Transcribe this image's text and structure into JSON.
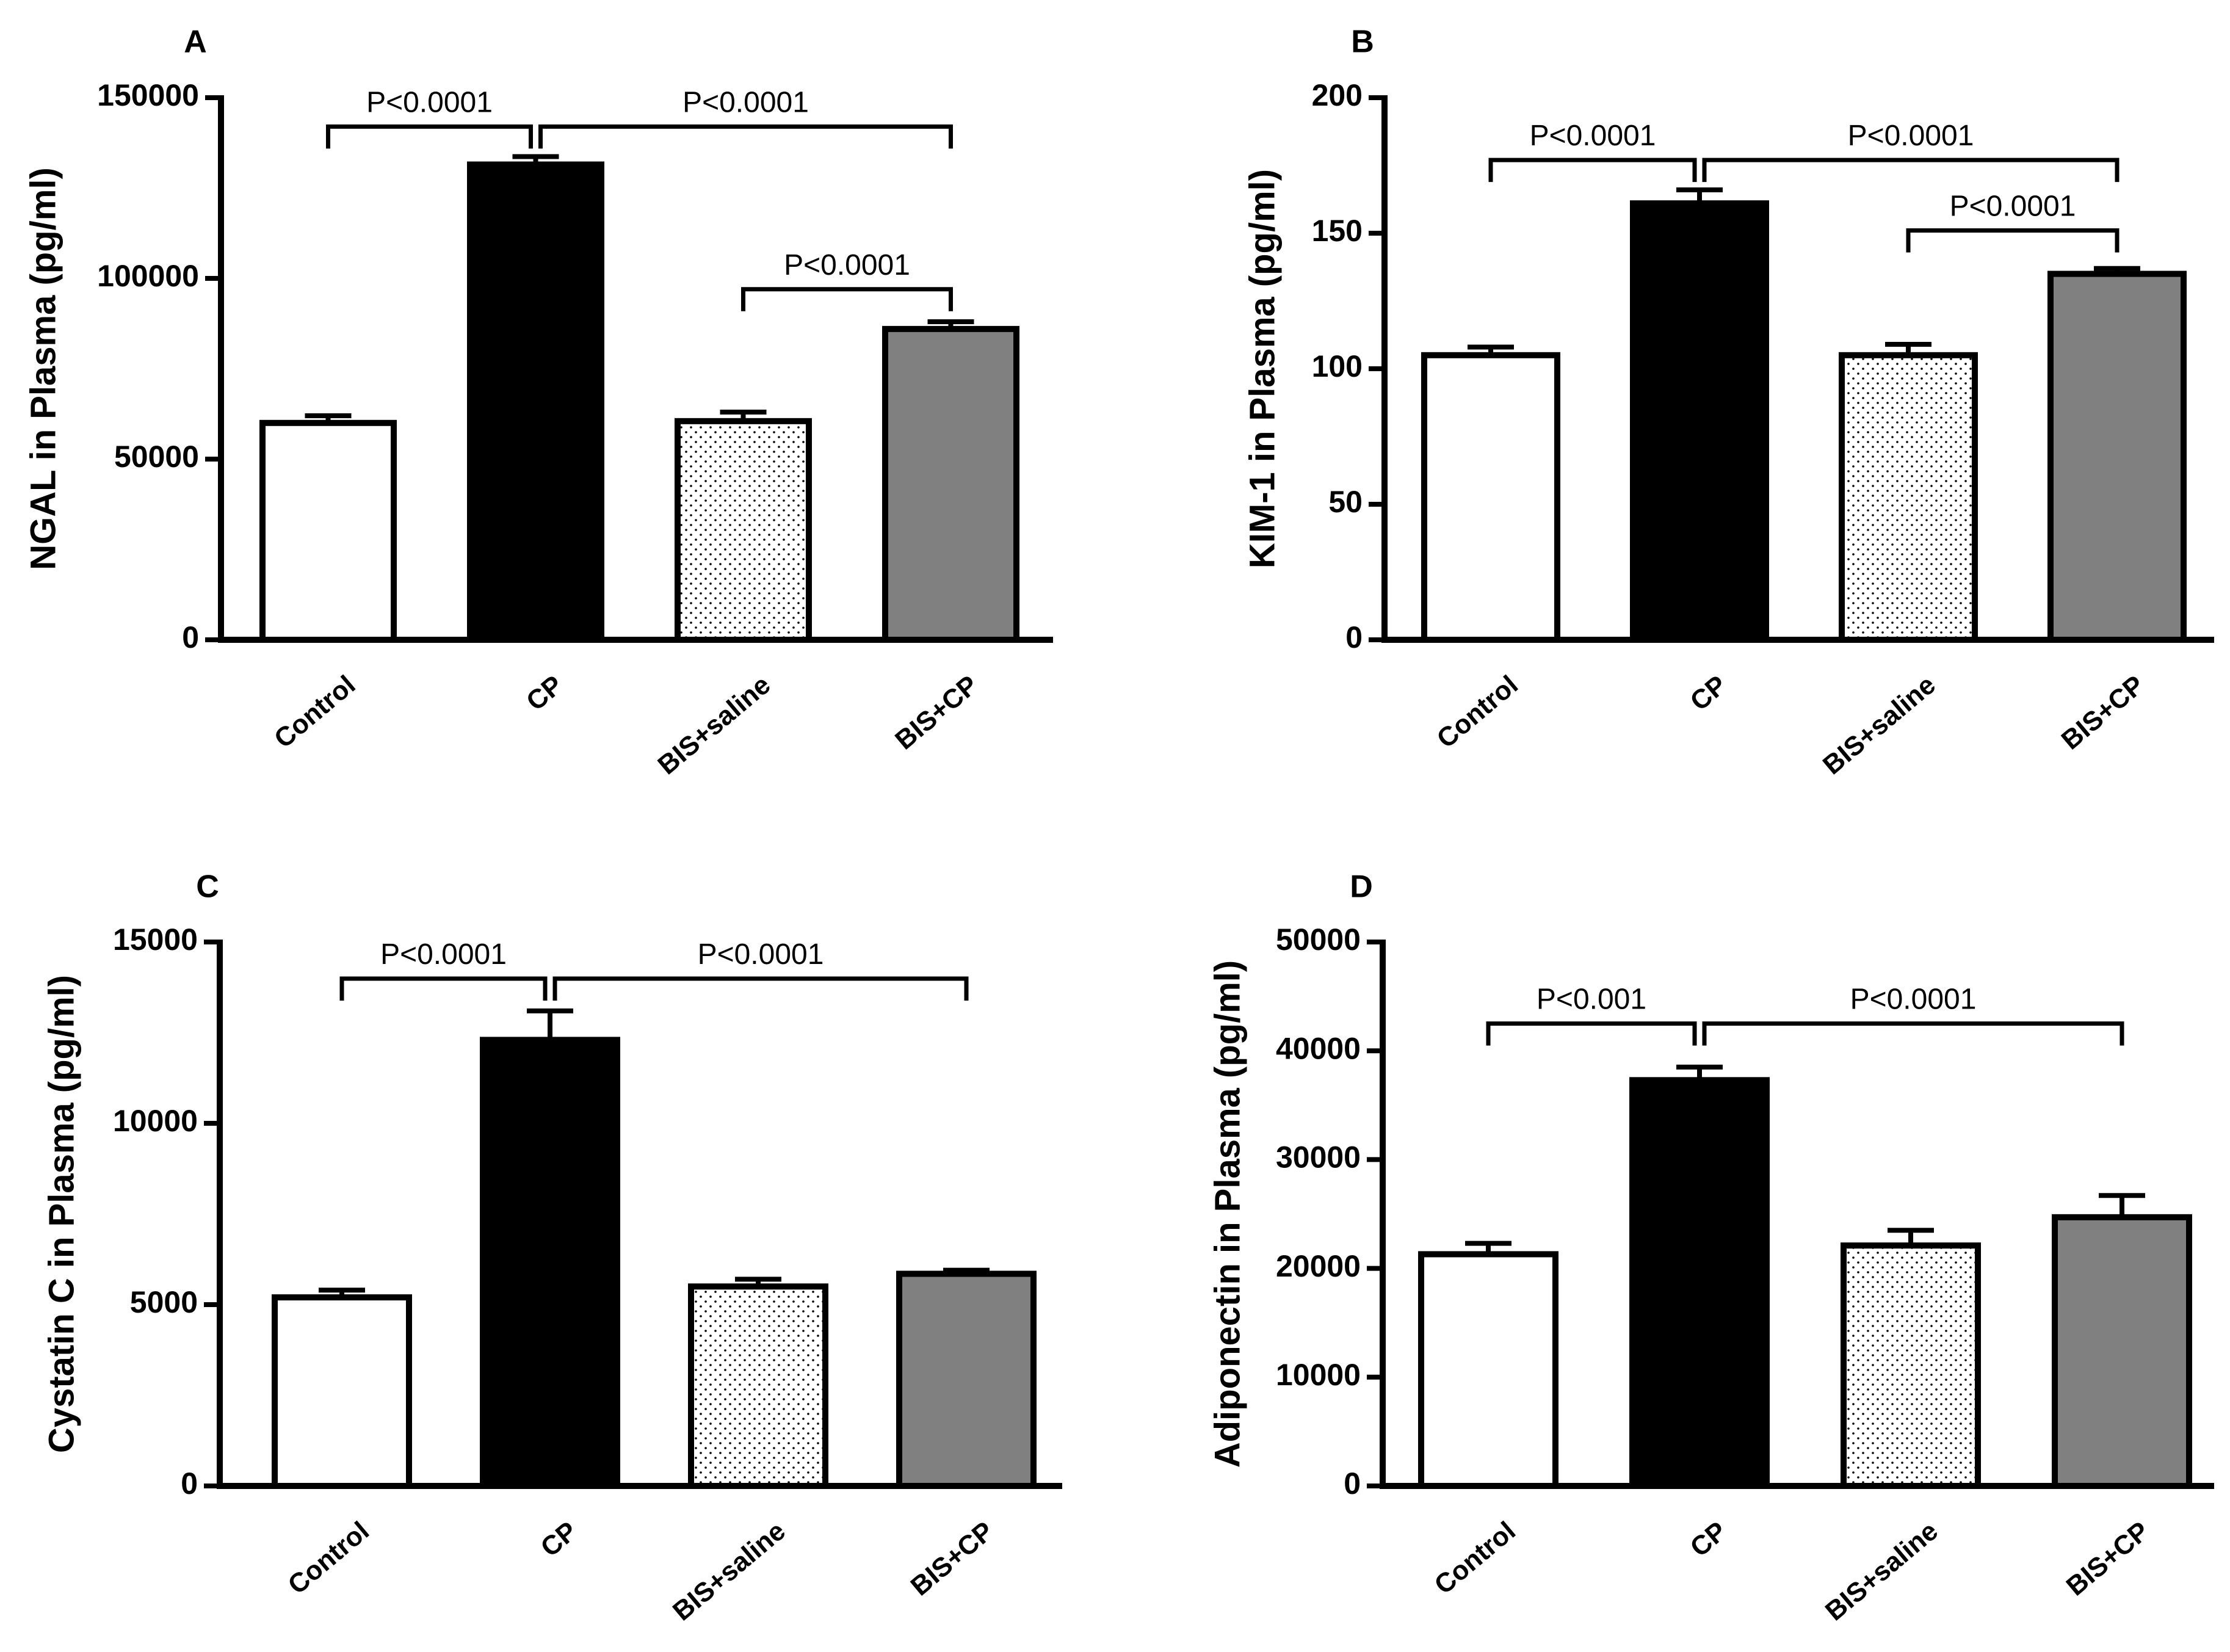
{
  "chart_data": [
    {
      "type": "bar",
      "panel": "A",
      "ylabel": "NGAL in Plasma (pg/ml)",
      "categories": [
        "Control",
        "CP",
        "BIS+saline",
        "BIS+CP"
      ],
      "values": [
        60000,
        131500,
        60500,
        86000
      ],
      "errors": [
        2000,
        2200,
        2500,
        2000
      ],
      "fills": [
        "white",
        "black",
        "dots",
        "gray"
      ],
      "ylim": [
        0,
        150000
      ],
      "yticks": [
        0,
        50000,
        100000,
        150000
      ],
      "ytick_labels": [
        "0",
        "50000",
        "100000",
        "150000"
      ],
      "comparisons": [
        {
          "from": 0,
          "to": 1,
          "label": "P<0.0001",
          "y": 142000
        },
        {
          "from": 1,
          "to": 3,
          "label": "P<0.0001",
          "y": 142000
        },
        {
          "from": 2,
          "to": 3,
          "label": "P<0.0001",
          "y": 97000
        }
      ]
    },
    {
      "type": "bar",
      "panel": "B",
      "ylabel": "KIM-1 in Plasma (pg/ml)",
      "categories": [
        "Control",
        "CP",
        "BIS+saline",
        "BIS+CP"
      ],
      "values": [
        105,
        161,
        105,
        135
      ],
      "errors": [
        3,
        5,
        4,
        2
      ],
      "fills": [
        "white",
        "black",
        "dots",
        "gray"
      ],
      "ylim": [
        0,
        200
      ],
      "yticks": [
        0,
        50,
        100,
        150,
        200
      ],
      "ytick_labels": [
        "0",
        "50",
        "100",
        "150",
        "200"
      ],
      "comparisons": [
        {
          "from": 0,
          "to": 1,
          "label": "P<0.0001",
          "y": 177
        },
        {
          "from": 1,
          "to": 3,
          "label": "P<0.0001",
          "y": 177
        },
        {
          "from": 2,
          "to": 3,
          "label": "P<0.0001",
          "y": 151
        }
      ]
    },
    {
      "type": "bar",
      "panel": "C",
      "ylabel": "Cystatin C in Plasma (pg/ml)",
      "categories": [
        "Control",
        "CP",
        "BIS+saline",
        "BIS+CP"
      ],
      "values": [
        5200,
        12300,
        5500,
        5850
      ],
      "errors": [
        200,
        800,
        200,
        100
      ],
      "fills": [
        "white",
        "black",
        "dots",
        "gray"
      ],
      "ylim": [
        0,
        15000
      ],
      "yticks": [
        0,
        5000,
        10000,
        15000
      ],
      "ytick_labels": [
        "0",
        "5000",
        "10000",
        "15000"
      ],
      "comparisons": [
        {
          "from": 0,
          "to": 1,
          "label": "P<0.0001",
          "y": 13990
        },
        {
          "from": 1,
          "to": 3,
          "label": "P<0.0001",
          "y": 13990
        }
      ]
    },
    {
      "type": "bar",
      "panel": "D",
      "ylabel": "Adiponectin in Plasma (pg/ml)",
      "categories": [
        "Control",
        "CP",
        "BIS+saline",
        "BIS+CP"
      ],
      "values": [
        21300,
        37300,
        22100,
        24700
      ],
      "errors": [
        1000,
        1200,
        1400,
        2000
      ],
      "fills": [
        "white",
        "black",
        "dots",
        "gray"
      ],
      "ylim": [
        0,
        50000
      ],
      "yticks": [
        0,
        10000,
        20000,
        30000,
        40000,
        50000
      ],
      "ytick_labels": [
        "0",
        "10000",
        "20000",
        "30000",
        "40000",
        "50000"
      ],
      "comparisons": [
        {
          "from": 0,
          "to": 1,
          "label": "P<0.001",
          "y": 42500
        },
        {
          "from": 1,
          "to": 3,
          "label": "P<0.0001",
          "y": 42500
        }
      ]
    }
  ]
}
